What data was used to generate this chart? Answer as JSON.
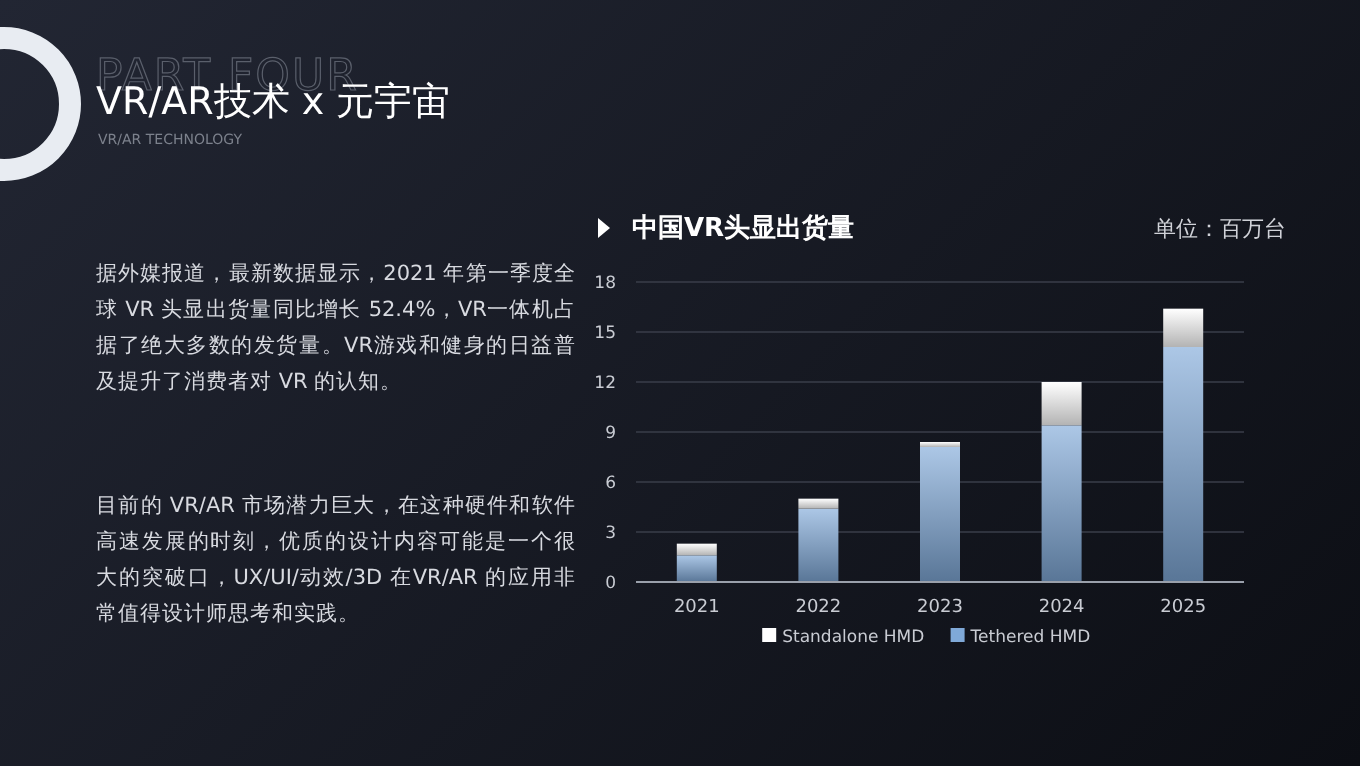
{
  "chart_data": {
    "type": "bar",
    "stacked": true,
    "title": "中国VR头显出货量",
    "annotations": [
      "PART FOUR",
      "VR/AR技术 x 元宇宙",
      "VR/AR TECHNOLOGY",
      "据外媒报道，最新数据显示，2021 年第一季度全球 VR 头显出货量同比增长 52.4%，VR一体机占据了绝大多数的发货量。VR游戏和健身的日益普及提升了消费者对 VR 的认知。",
      "目前的 VR/AR 市场潜力巨大，在这种硬件和软件高速发展的时刻，优质的设计内容可能是一个很大的突破口，UX/UI/动效/3D 在VR/AR 的应用非常值得设计师思考和实践。",
      "单位：百万台"
    ],
    "categories": [
      "2021",
      "2022",
      "2023",
      "2024",
      "2025"
    ],
    "series": [
      {
        "name": "Tethered HMD",
        "color": "#7fa9d8",
        "values": [
          1.6,
          4.4,
          8.1,
          9.4,
          14.1
        ]
      },
      {
        "name": "Standalone HMD",
        "color": "#ffffff",
        "values": [
          0.7,
          0.6,
          0.3,
          2.6,
          2.3
        ]
      }
    ],
    "ylim": [
      0,
      18
    ],
    "yticks": [
      0,
      3,
      6,
      9,
      12,
      15,
      18
    ],
    "grid": "y",
    "legend": "bottom"
  }
}
